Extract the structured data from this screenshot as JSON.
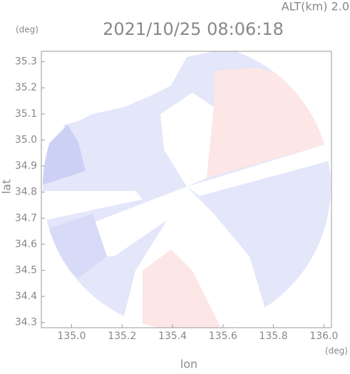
{
  "chart_data": {
    "type": "map",
    "title": "2021/10/25 08:06:18",
    "subtitle": "ALT(km) 2.0",
    "y_unit": "(deg)",
    "x_unit": "(deg)",
    "ylabel": "lat",
    "xlabel": "lon",
    "xlim": [
      134.88,
      136.03
    ],
    "ylim": [
      34.28,
      35.34
    ],
    "xticks": [
      {
        "value": 135,
        "label": "135.0"
      },
      135.2,
      135.4,
      135.6,
      135.8,
      {
        "value": 136,
        "label": "136.0"
      }
    ],
    "yticks": [
      34.3,
      34.4,
      34.5,
      34.6,
      34.7,
      34.8,
      34.9,
      {
        "value": 35,
        "label": "35.0"
      },
      35.1,
      35.2,
      35.3
    ]
  }
}
